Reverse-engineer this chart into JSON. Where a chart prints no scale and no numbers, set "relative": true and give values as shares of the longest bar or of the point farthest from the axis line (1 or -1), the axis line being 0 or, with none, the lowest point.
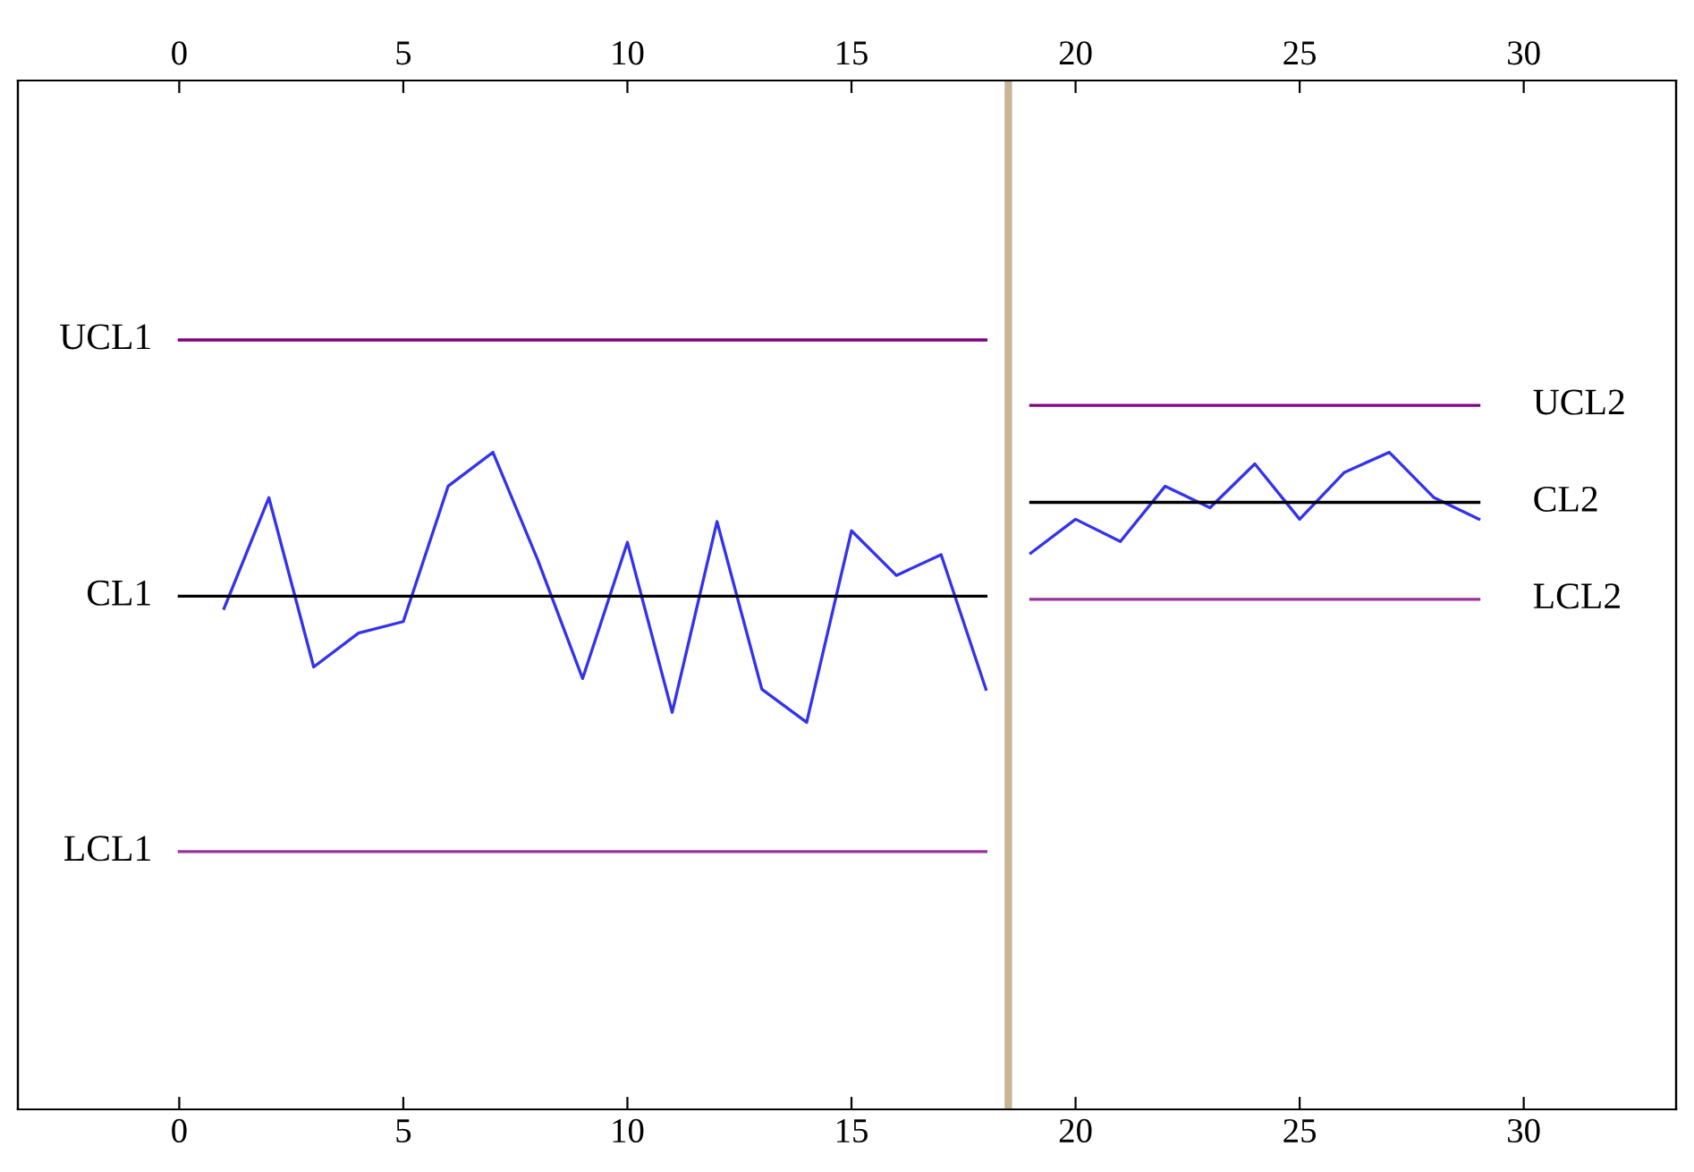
{
  "chart_data": {
    "type": "line",
    "relative": true,
    "xlim": [
      -3.6,
      33.4
    ],
    "xticks": [
      0,
      5,
      10,
      15,
      20,
      25,
      30
    ],
    "x2lim": [
      -3.6,
      33.4
    ],
    "x2ticks": [
      0,
      5,
      10,
      15,
      20,
      25,
      30
    ],
    "tick_labels": "x",
    "grid": false,
    "legend": false,
    "marker": "none",
    "line_style": "solid",
    "series": [
      {
        "color": "#3333ee",
        "x": [
          1,
          2,
          3,
          4,
          5,
          6,
          7,
          8,
          9,
          10,
          11,
          12,
          13,
          14,
          15,
          16,
          17,
          18
        ],
        "values": [
          0.651,
          0.795,
          0.575,
          0.619,
          0.634,
          0.81,
          0.854,
          0.714,
          0.56,
          0.737,
          0.516,
          0.764,
          0.546,
          0.503,
          0.752,
          0.694,
          0.721,
          0.546
        ]
      },
      {
        "color": "#3333ee",
        "x": [
          19,
          20,
          21,
          22,
          23,
          24,
          25,
          26,
          27,
          28,
          29
        ],
        "values": [
          0.723,
          0.767,
          0.738,
          0.81,
          0.782,
          0.839,
          0.767,
          0.828,
          0.854,
          0.795,
          0.767
        ]
      },
      {
        "name": "UCL1",
        "color": "#800080",
        "x": [
          0,
          18
        ],
        "values": [
          1.0,
          1.0
        ]
      },
      {
        "name": "CL1",
        "color": "#000000",
        "x": [
          0,
          18
        ],
        "values": [
          0.667,
          0.667
        ]
      },
      {
        "name": "LCL1",
        "color": "#993399",
        "x": [
          0,
          18
        ],
        "values": [
          0.335,
          0.335
        ]
      },
      {
        "name": "UCL2",
        "color": "#800080",
        "x": [
          19,
          29
        ],
        "values": [
          0.915,
          0.915
        ]
      },
      {
        "name": "CL2",
        "color": "#000000",
        "x": [
          19,
          29
        ],
        "values": [
          0.789,
          0.789
        ]
      },
      {
        "name": "LCL2",
        "color": "#993399",
        "x": [
          19,
          29
        ],
        "values": [
          0.663,
          0.663
        ]
      }
    ],
    "ref_lines": [
      {
        "axis": "x",
        "value": 18.5,
        "color": "#c8b496"
      }
    ]
  }
}
